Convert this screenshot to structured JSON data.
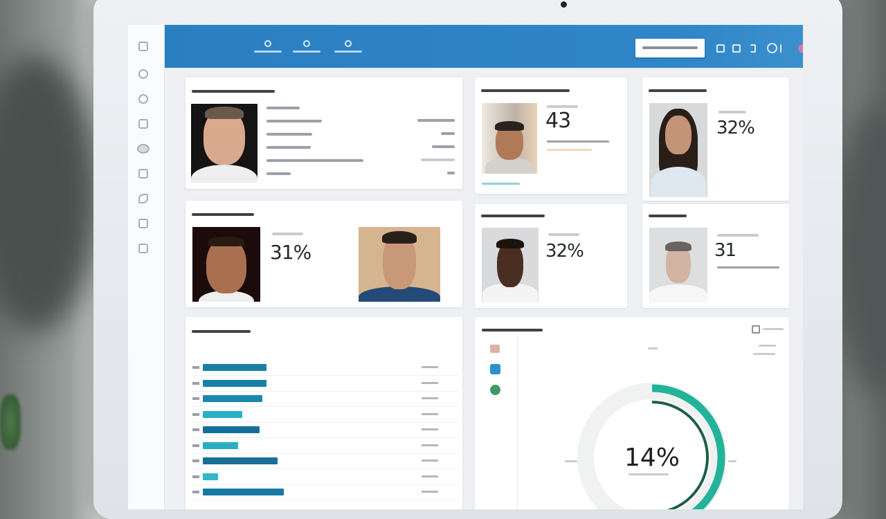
{
  "header": {
    "nav_items": [
      "nav-1",
      "nav-2",
      "nav-3"
    ],
    "accent_color": "#2a7fc1"
  },
  "cards": {
    "profile_top_center": {
      "metric": "43"
    },
    "profile_top_right": {
      "metric": "32%"
    },
    "profile_mid_left": {
      "metric": "31%"
    },
    "profile_mid_center": {
      "metric": "32%"
    },
    "profile_mid_right": {
      "metric": "31"
    }
  },
  "bar_panel": {
    "bar_colors": [
      "#1a7fa8",
      "#1a80a8",
      "#1b86ae",
      "#2ab0c6",
      "#176f99",
      "#2aaec4",
      "#1b6e94",
      "#33b6c8",
      "#1679a3"
    ],
    "values_percent": [
      29,
      29,
      27,
      18,
      26,
      16,
      34,
      7,
      37
    ]
  },
  "donut_panel": {
    "center_value": "14%",
    "outer_arc_fraction": 0.56,
    "inner_arc_fraction": 0.48,
    "outer_color": "#22b39a",
    "inner_color": "#1f5e48"
  }
}
